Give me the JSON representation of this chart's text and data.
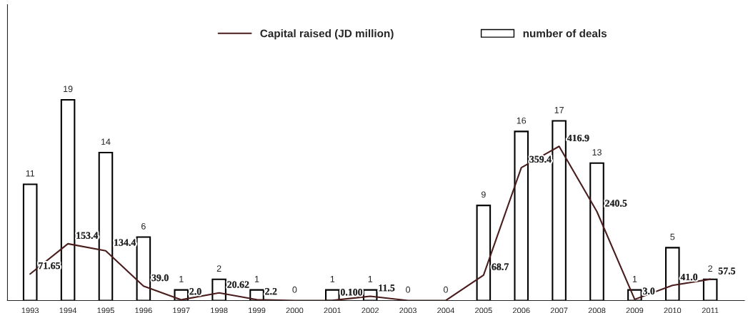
{
  "chart_data": {
    "type": "bar",
    "categories": [
      "1993",
      "1994",
      "1995",
      "1996",
      "1997",
      "1998",
      "1999",
      "2000",
      "2001",
      "2002",
      "2003",
      "2004",
      "2005",
      "2006",
      "2007",
      "2008",
      "2009",
      "2010",
      "2011"
    ],
    "series": [
      {
        "name": "number of deals",
        "color": "#ffffff",
        "values": [
          11,
          19,
          14,
          6,
          1,
          2,
          1,
          0,
          1,
          1,
          0,
          0,
          9,
          16,
          17,
          13,
          1,
          5,
          2
        ],
        "value_labels": [
          "11",
          "19",
          "14",
          "6",
          "1",
          "2",
          "1",
          "0",
          "1",
          "1",
          "0",
          "0",
          "9",
          "16",
          "17",
          "13",
          "1",
          "5",
          "2"
        ]
      },
      {
        "name": "Capital raised (JD million)",
        "type": "line",
        "axis": "y2",
        "color": "#4a1c1c",
        "values": [
          71.65,
          153.4,
          134.4,
          39.0,
          2.0,
          20.62,
          2.2,
          0,
          0.1,
          11.5,
          0,
          0,
          68.7,
          359.4,
          416.9,
          240.5,
          3.0,
          41.0,
          57.5
        ],
        "value_labels": [
          "71.65",
          "153.4",
          "134.4",
          "39.0",
          "2.0",
          "20.62",
          "2.2",
          null,
          "0.100",
          "11.5",
          null,
          null,
          "68.7",
          "359.4",
          "416.9",
          "240.5",
          "3.0",
          "41.0",
          "57.5"
        ]
      }
    ],
    "ylim": [
      0,
      28
    ],
    "y2lim": [
      0,
      800
    ],
    "tick_labels": "x",
    "legend": "top",
    "grid": false,
    "line_style": "solid"
  }
}
